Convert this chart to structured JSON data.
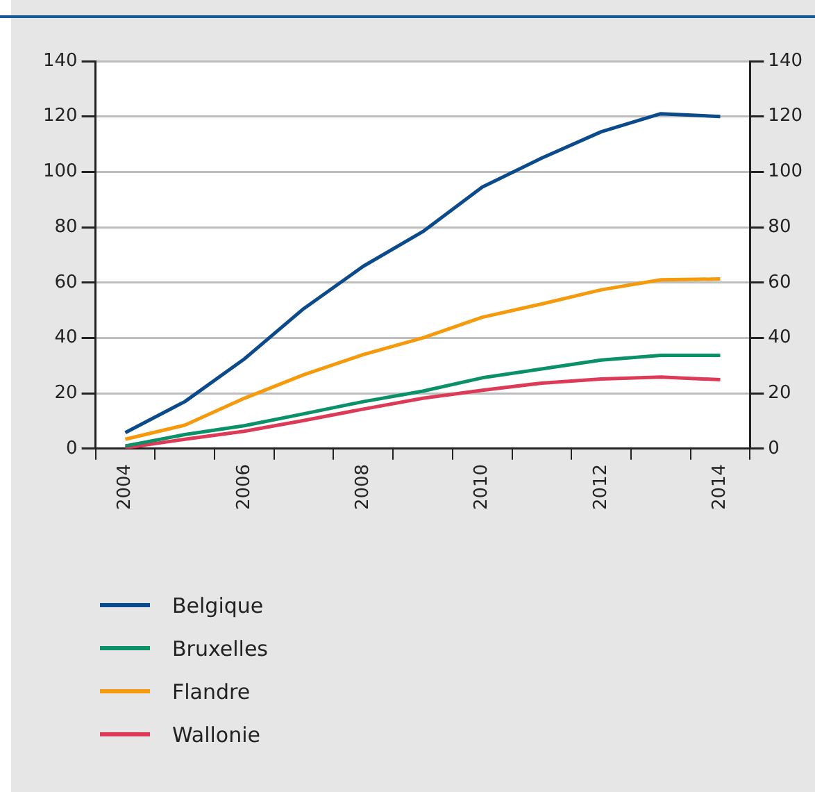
{
  "chart_data": {
    "type": "line",
    "categories": [
      "2004",
      null,
      "2006",
      null,
      "2008",
      null,
      "2010",
      null,
      "2012",
      null,
      "2014"
    ],
    "series": [
      {
        "name": "Belgique",
        "color": "#0b4a8b",
        "values": [
          5.8,
          17.0,
          32.4,
          50.6,
          65.9,
          78.4,
          94.5,
          105,
          114.5,
          121,
          120
        ]
      },
      {
        "name": "Bruxelles",
        "color": "#0a9168",
        "values": [
          1.0,
          5.1,
          8.3,
          12.6,
          17.0,
          20.8,
          25.6,
          28.8,
          32.0,
          33.7,
          33.7
        ]
      },
      {
        "name": "Flandre",
        "color": "#f59a0c",
        "values": [
          3.4,
          8.5,
          18.2,
          26.7,
          34.0,
          40.0,
          47.5,
          52.3,
          57.4,
          61.0,
          61.3
        ]
      },
      {
        "name": "Wallonie",
        "color": "#dc3a57",
        "values": [
          0.3,
          3.4,
          6.3,
          10.2,
          14.3,
          18.2,
          21.1,
          23.7,
          25.2,
          25.9,
          24.9
        ]
      }
    ],
    "ylim": [
      0,
      140
    ],
    "yticks": [
      0,
      20,
      40,
      60,
      80,
      100,
      120,
      140
    ],
    "y2lim": [
      0,
      140
    ],
    "y2ticks": [
      0,
      20,
      40,
      60,
      80,
      100,
      120,
      140
    ],
    "grid": "y",
    "legend": "bottom",
    "marker": "none",
    "line_style": "solid"
  }
}
